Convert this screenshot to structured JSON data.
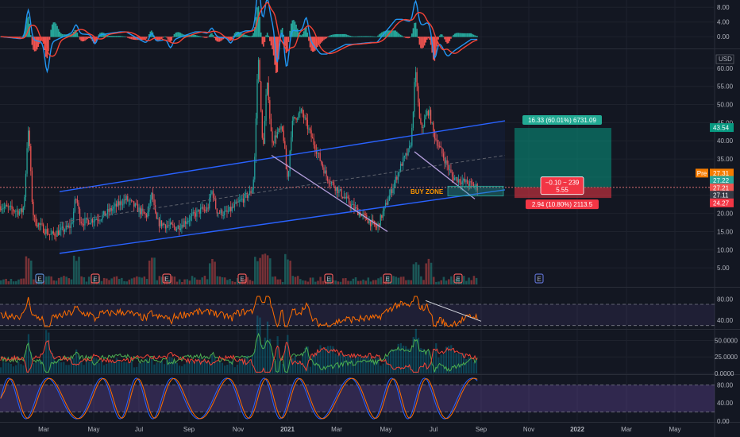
{
  "colors": {
    "bg": "#131722",
    "grid": "#1e222d",
    "up": "#26a69a",
    "down": "#ef5350",
    "channel": "#2962ff",
    "macd": "#2196f3",
    "signal": "#f44336",
    "rsi": "#ff6d00",
    "stoch_k": "#2962ff",
    "stoch_d": "#ff6d00",
    "band": "#7e57c2",
    "profit": "#089981",
    "loss": "#f23645",
    "buy_zone": "#ff9800",
    "diag": "#b39ddb"
  },
  "price_axis": {
    "currency": "USD",
    "ticks": [
      "60.00",
      "55.00",
      "50.00",
      "45.00",
      "40.00",
      "35.00",
      "30.00",
      "25.00",
      "20.00",
      "15.00",
      "10.00",
      "5.00"
    ],
    "tick_values": [
      60,
      55,
      50,
      45,
      40,
      35,
      30,
      25,
      20,
      15,
      10,
      5
    ],
    "range": [
      0,
      65
    ],
    "tags": [
      {
        "text": "43.54",
        "value": 43.54,
        "color": "#089981"
      },
      {
        "text": "27.31",
        "value": 27.31,
        "color": "#f57c00",
        "prefix": "Pre"
      },
      {
        "text": "27.22",
        "value": 27.22,
        "color": "#26a69a"
      },
      {
        "text": "27.21",
        "value": 27.21,
        "color": "#ef5350"
      },
      {
        "text": "27.11",
        "value": 27.11,
        "color": "#363a45"
      },
      {
        "text": "24.27",
        "value": 24.27,
        "color": "#f23645"
      }
    ]
  },
  "time_axis": {
    "labels": [
      "Mar",
      "May",
      "Jul",
      "Sep",
      "Nov",
      "2021",
      "Mar",
      "May",
      "Jul",
      "Sep",
      "Nov",
      "2022",
      "Mar",
      "May"
    ]
  },
  "macd_panel": {
    "ticks": [
      "8.00",
      "4.00",
      "0.00"
    ],
    "tick_values": [
      8,
      4,
      0
    ],
    "range": [
      -3,
      10
    ]
  },
  "rsi_panel": {
    "ticks": [
      "80.00",
      "40.00"
    ],
    "tick_values": [
      80,
      40
    ],
    "range": [
      25,
      100
    ],
    "band": [
      30,
      70
    ]
  },
  "dmi_panel": {
    "ticks": [
      "50.0000",
      "25.0000",
      "0.0000"
    ],
    "tick_values": [
      50,
      25,
      0
    ],
    "range": [
      0,
      65
    ]
  },
  "stoch_panel": {
    "ticks": [
      "80.00",
      "40.00",
      "0.00"
    ],
    "tick_values": [
      80,
      40,
      0
    ],
    "range": [
      0,
      100
    ],
    "band": [
      20,
      80
    ]
  },
  "annotations": {
    "buy_zone": "BUY ZONE",
    "profit_label": "16.33 (60.01%) 6731.09",
    "loss_label": "2.94 (10.80%) 2113.5",
    "entry_line1": "−0.10 ~ 239",
    "entry_line2": "5.55"
  },
  "earnings_marker": "E",
  "chart_data": {
    "type": "candlestick",
    "x": [
      "2020-02",
      "2020-03",
      "2020-04",
      "2020-05",
      "2020-06",
      "2020-07",
      "2020-08",
      "2020-09",
      "2020-10",
      "2020-11",
      "2020-12",
      "2021-01",
      "2021-02",
      "2021-03",
      "2021-04",
      "2021-05",
      "2021-06",
      "2021-07",
      "2021-08",
      "2021-09"
    ],
    "close": [
      22,
      20,
      14,
      17,
      19,
      24,
      18,
      16,
      21,
      20,
      26,
      42,
      48,
      30,
      22,
      16,
      34,
      46,
      30,
      27.21
    ],
    "high": [
      30,
      42,
      20,
      20,
      23,
      26,
      22,
      20,
      23,
      24,
      34,
      62,
      63,
      36,
      30,
      22,
      40,
      58,
      36,
      29
    ],
    "low": [
      12,
      10,
      10,
      14,
      17,
      17,
      16,
      14,
      17,
      18,
      20,
      25,
      30,
      22,
      19,
      14,
      22,
      26,
      24,
      24
    ],
    "ylim": [
      0,
      65
    ],
    "price_range": [
      5,
      60
    ],
    "channel_upper": [
      {
        "x": "2020-03",
        "y": 26
      },
      {
        "x": "2021-09",
        "y": 46
      }
    ],
    "channel_lower": [
      {
        "x": "2020-03",
        "y": 9
      },
      {
        "x": "2021-09",
        "y": 27
      }
    ],
    "last_price": 27.21,
    "target": 43.54,
    "stop": 24.27
  }
}
